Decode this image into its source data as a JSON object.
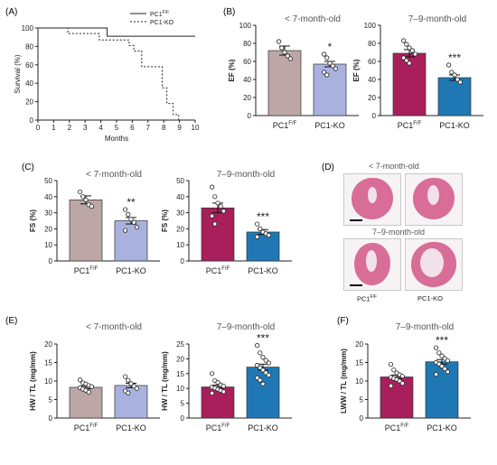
{
  "colors": {
    "pc1_young": "#bca6a6",
    "pc1ko_young": "#a9b2df",
    "pc1_old": "#a81f5c",
    "pc1ko_old": "#1f78b4",
    "he_stain": "#d86d97"
  },
  "figure": {
    "panels": [
      {
        "id": "A",
        "label": "(A)"
      },
      {
        "id": "B",
        "label": "(B)"
      },
      {
        "id": "C",
        "label": "(C)"
      },
      {
        "id": "D",
        "label": "(D)"
      },
      {
        "id": "E",
        "label": "(E)"
      },
      {
        "id": "F",
        "label": "(F)"
      }
    ],
    "histology": {
      "top_group": "< 7-month-old",
      "bottom_group": "7–9-month-old",
      "col1": "PC1",
      "col1_sup": "F/F",
      "col2": "PC1-KO"
    }
  },
  "chart_data": [
    {
      "id": "A-survival",
      "type": "line",
      "xlabel": "Months",
      "ylabel": "Survival (%)",
      "xlim": [
        0,
        10
      ],
      "ylim": [
        0,
        100
      ],
      "xticks": [
        0,
        1,
        2,
        3,
        4,
        5,
        6,
        7,
        8,
        9,
        10
      ],
      "yticks": [
        0,
        20,
        40,
        60,
        80,
        100
      ],
      "legend_position": "top-right",
      "series": [
        {
          "name": "PC1",
          "name_sup": "F/F",
          "style": "solid",
          "x": [
            0,
            4.4,
            4.4,
            10
          ],
          "y": [
            100,
            100,
            91,
            91
          ]
        },
        {
          "name": "PC1-KO",
          "style": "dashed",
          "x": [
            0,
            1.9,
            1.9,
            3.9,
            3.9,
            5.8,
            5.8,
            6.1,
            6.1,
            6.6,
            6.6,
            7.2,
            7.2,
            7.9,
            7.9,
            8.2,
            8.2,
            8.6,
            8.6,
            8.95,
            8.95
          ],
          "y": [
            100,
            100,
            94,
            94,
            87,
            87,
            81,
            81,
            75,
            75,
            58,
            58,
            58,
            58,
            35,
            35,
            18,
            18,
            6,
            6,
            0
          ]
        }
      ]
    },
    {
      "id": "B-ef-young",
      "type": "bar",
      "title": "< 7-month-old",
      "ylabel": "EF (%)",
      "ylim": [
        0,
        100
      ],
      "yticks": [
        0,
        20,
        40,
        60,
        80,
        100
      ],
      "categories": [
        "PC1",
        "PC1-KO"
      ],
      "category_sup": [
        "F/F",
        ""
      ],
      "values": [
        72,
        57
      ],
      "errors": [
        5,
        3
      ],
      "significance": [
        "",
        "*"
      ],
      "points": [
        [
          82,
          75,
          70,
          66,
          63
        ],
        [
          68,
          64,
          58,
          55,
          52,
          48,
          45
        ]
      ],
      "colors": [
        "#bca6a6",
        "#a9b2df"
      ]
    },
    {
      "id": "B-ef-old",
      "type": "bar",
      "title": "7–9-month-old",
      "ylabel": "EF (%)",
      "ylim": [
        0,
        100
      ],
      "yticks": [
        0,
        20,
        40,
        60,
        80,
        100
      ],
      "categories": [
        "PC1",
        "PC1-KO"
      ],
      "category_sup": [
        "F/F",
        ""
      ],
      "values": [
        69,
        42
      ],
      "errors": [
        4,
        3
      ],
      "significance": [
        "",
        "***"
      ],
      "points": [
        [
          83,
          79,
          75,
          72,
          68,
          64,
          61,
          58
        ],
        [
          56,
          48,
          45,
          40,
          37
        ]
      ],
      "colors": [
        "#a81f5c",
        "#1f78b4"
      ]
    },
    {
      "id": "C-fs-young",
      "type": "bar",
      "title": "< 7-month-old",
      "ylabel": "FS (%)",
      "ylim": [
        0,
        50
      ],
      "yticks": [
        0,
        10,
        20,
        30,
        40,
        50
      ],
      "categories": [
        "PC1",
        "PC1-KO"
      ],
      "category_sup": [
        "F/F",
        ""
      ],
      "values": [
        38,
        25
      ],
      "errors": [
        2.5,
        2
      ],
      "significance": [
        "",
        "**"
      ],
      "points": [
        [
          43,
          40,
          38,
          35,
          34
        ],
        [
          32,
          29,
          26,
          24,
          21,
          19
        ]
      ],
      "colors": [
        "#bca6a6",
        "#a9b2df"
      ]
    },
    {
      "id": "C-fs-old",
      "type": "bar",
      "title": "7–9-month-old",
      "ylabel": "FS (%)",
      "ylim": [
        0,
        50
      ],
      "yticks": [
        0,
        10,
        20,
        30,
        40,
        50
      ],
      "categories": [
        "PC1",
        "PC1-KO"
      ],
      "category_sup": [
        "F/F",
        ""
      ],
      "values": [
        33,
        18
      ],
      "errors": [
        3,
        1.5
      ],
      "significance": [
        "",
        "***"
      ],
      "points": [
        [
          46,
          40,
          36,
          34,
          31,
          28,
          23
        ],
        [
          23,
          20,
          18,
          17,
          16,
          15
        ]
      ],
      "colors": [
        "#a81f5c",
        "#1f78b4"
      ]
    },
    {
      "id": "E-hw-young",
      "type": "bar",
      "title": "< 7-month-old",
      "ylabel": "HW / TL (mg/mm)",
      "ylim": [
        0,
        20
      ],
      "yticks": [
        0,
        5,
        10,
        15,
        20
      ],
      "categories": [
        "PC1",
        "PC1-KO"
      ],
      "category_sup": [
        "F/F",
        ""
      ],
      "values": [
        8.3,
        8.8
      ],
      "errors": [
        0.4,
        0.6
      ],
      "significance": [
        "",
        ""
      ],
      "points": [
        [
          10.3,
          9.5,
          9.2,
          8.8,
          8.5,
          8.2,
          7.8,
          7.5,
          7.0
        ],
        [
          11.2,
          10.2,
          9.3,
          8.6,
          8.0,
          7.3,
          6.8
        ]
      ],
      "colors": [
        "#bca6a6",
        "#a9b2df"
      ]
    },
    {
      "id": "E-hw-old",
      "type": "bar",
      "title": "7–9-month-old",
      "ylabel": "HW / TL (mg/mm)",
      "ylim": [
        0,
        25
      ],
      "yticks": [
        0,
        5,
        10,
        15,
        20,
        25
      ],
      "categories": [
        "PC1",
        "PC1-KO"
      ],
      "category_sup": [
        "F/F",
        ""
      ],
      "values": [
        10.5,
        17.2
      ],
      "errors": [
        0.6,
        1.0
      ],
      "significance": [
        "",
        "***"
      ],
      "points": [
        [
          15.0,
          12.6,
          12.0,
          11.2,
          10.8,
          10.4,
          10.1,
          9.7,
          9.3,
          8.9,
          8.4
        ],
        [
          24.5,
          22.0,
          20.5,
          19.5,
          18.6,
          17.8,
          17.0,
          16.2,
          15.3,
          14.5,
          13.6,
          12.8,
          11.5
        ]
      ],
      "colors": [
        "#a81f5c",
        "#1f78b4"
      ]
    },
    {
      "id": "F-lww-old",
      "type": "bar",
      "title": "7–9-month-old",
      "ylabel": "LWW / TL (mg/mm)",
      "ylim": [
        0,
        20
      ],
      "yticks": [
        0,
        5,
        10,
        15,
        20
      ],
      "categories": [
        "PC1",
        "PC1-KO"
      ],
      "category_sup": [
        "F/F",
        ""
      ],
      "values": [
        11.1,
        15.2
      ],
      "errors": [
        0.5,
        0.6
      ],
      "significance": [
        "",
        "***"
      ],
      "points": [
        [
          14.5,
          13.0,
          12.2,
          11.7,
          11.3,
          11.0,
          10.7,
          10.4,
          10.0,
          9.4,
          8.7
        ],
        [
          19.0,
          17.6,
          16.8,
          16.1,
          15.5,
          15.0,
          14.6,
          14.0,
          13.3,
          12.5,
          11.8
        ]
      ],
      "colors": [
        "#a81f5c",
        "#1f78b4"
      ]
    }
  ]
}
